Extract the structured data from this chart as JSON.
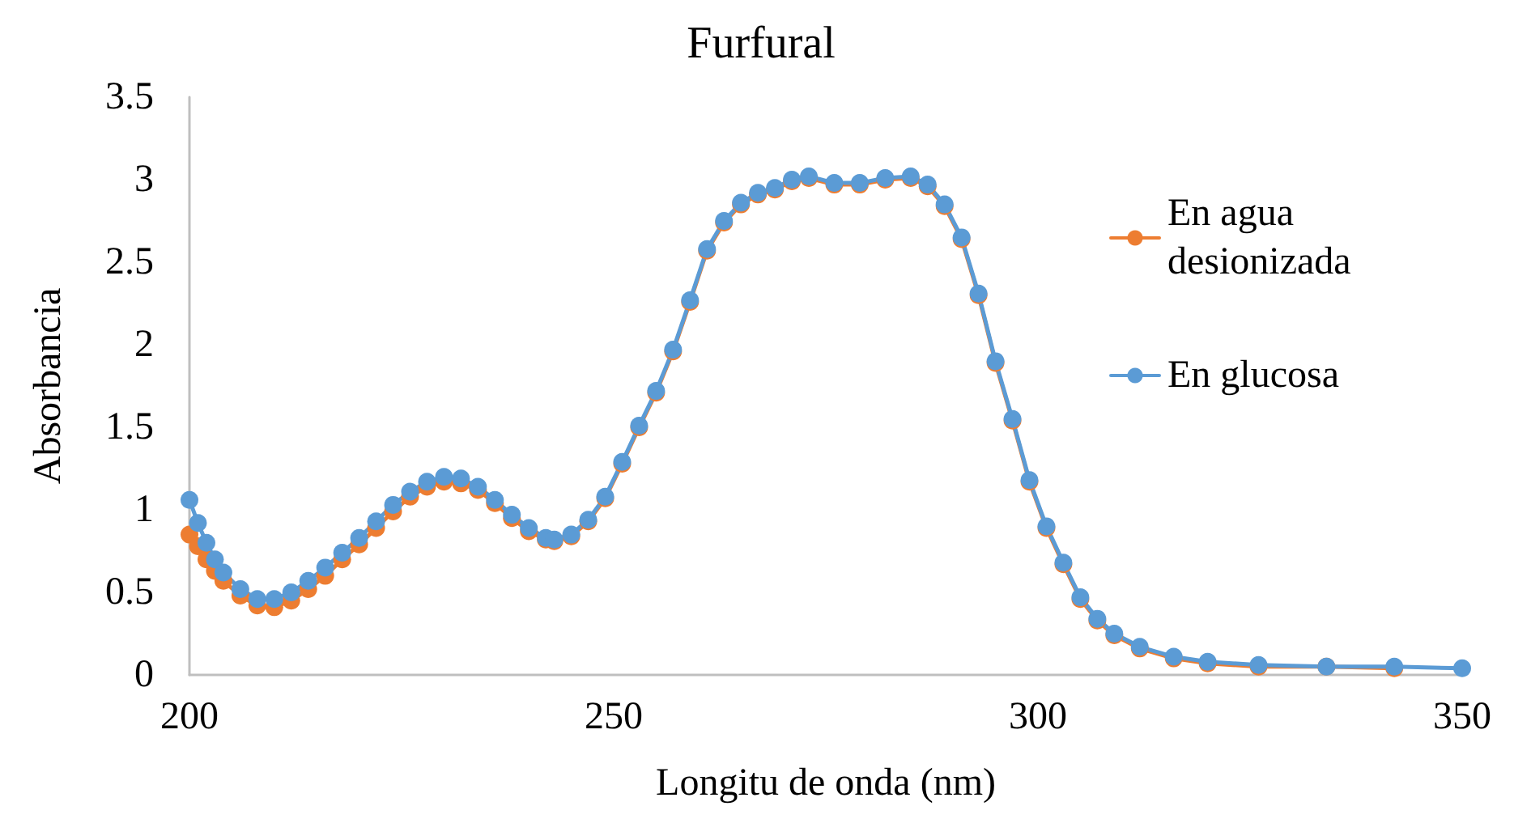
{
  "chart_data": {
    "type": "line",
    "title": "Furfural",
    "xlabel": "Longitu de onda (nm)",
    "ylabel": "Absorbancia",
    "xlim": [
      200,
      350
    ],
    "xticks": [
      200,
      250,
      300,
      350
    ],
    "ylim": [
      0,
      3.5
    ],
    "yticks": [
      0,
      0.5,
      1,
      1.5,
      2,
      2.5,
      3,
      3.5
    ],
    "grid": false,
    "legend": "right",
    "marker": "circle",
    "series": [
      {
        "name": "En agua desionizada",
        "color": "#ed7d31",
        "x": [
          200,
          201,
          202,
          203,
          204,
          206,
          208,
          210,
          212,
          214,
          216,
          218,
          220,
          222,
          224,
          226,
          228,
          230,
          232,
          234,
          236,
          238,
          240,
          242,
          243,
          245,
          247,
          249,
          251,
          253,
          255,
          257,
          259,
          261,
          263,
          265,
          267,
          269,
          271,
          273,
          276,
          279,
          282,
          285,
          287,
          289,
          291,
          293,
          295,
          297,
          299,
          301,
          303,
          305,
          307,
          309,
          312,
          316,
          320,
          326,
          334,
          342
        ],
        "values": [
          0.85,
          0.78,
          0.7,
          0.63,
          0.57,
          0.48,
          0.42,
          0.41,
          0.45,
          0.52,
          0.6,
          0.7,
          0.79,
          0.89,
          0.99,
          1.08,
          1.14,
          1.17,
          1.16,
          1.12,
          1.04,
          0.95,
          0.87,
          0.82,
          0.81,
          0.84,
          0.93,
          1.07,
          1.28,
          1.5,
          1.71,
          1.96,
          2.26,
          2.57,
          2.74,
          2.85,
          2.91,
          2.94,
          2.99,
          3.01,
          2.97,
          2.97,
          3.0,
          3.01,
          2.96,
          2.84,
          2.64,
          2.3,
          1.89,
          1.54,
          1.17,
          0.89,
          0.67,
          0.46,
          0.33,
          0.24,
          0.16,
          0.1,
          0.07,
          0.05,
          0.05,
          0.04
        ]
      },
      {
        "name": "En glucosa",
        "color": "#5b9bd5",
        "x": [
          200,
          201,
          202,
          203,
          204,
          206,
          208,
          210,
          212,
          214,
          216,
          218,
          220,
          222,
          224,
          226,
          228,
          230,
          232,
          234,
          236,
          238,
          240,
          242,
          243,
          245,
          247,
          249,
          251,
          253,
          255,
          257,
          259,
          261,
          263,
          265,
          267,
          269,
          271,
          273,
          276,
          279,
          282,
          285,
          287,
          289,
          291,
          293,
          295,
          297,
          299,
          301,
          303,
          305,
          307,
          309,
          312,
          316,
          320,
          326,
          334,
          342,
          350
        ],
        "values": [
          1.06,
          0.92,
          0.8,
          0.7,
          0.62,
          0.52,
          0.46,
          0.46,
          0.5,
          0.57,
          0.65,
          0.74,
          0.83,
          0.93,
          1.03,
          1.11,
          1.17,
          1.2,
          1.19,
          1.14,
          1.06,
          0.97,
          0.89,
          0.83,
          0.82,
          0.85,
          0.94,
          1.08,
          1.29,
          1.51,
          1.72,
          1.97,
          2.27,
          2.58,
          2.75,
          2.86,
          2.92,
          2.95,
          3.0,
          3.02,
          2.98,
          2.98,
          3.01,
          3.02,
          2.97,
          2.85,
          2.65,
          2.31,
          1.9,
          1.55,
          1.18,
          0.9,
          0.68,
          0.47,
          0.34,
          0.25,
          0.17,
          0.11,
          0.08,
          0.06,
          0.05,
          0.05,
          0.04
        ]
      }
    ]
  }
}
